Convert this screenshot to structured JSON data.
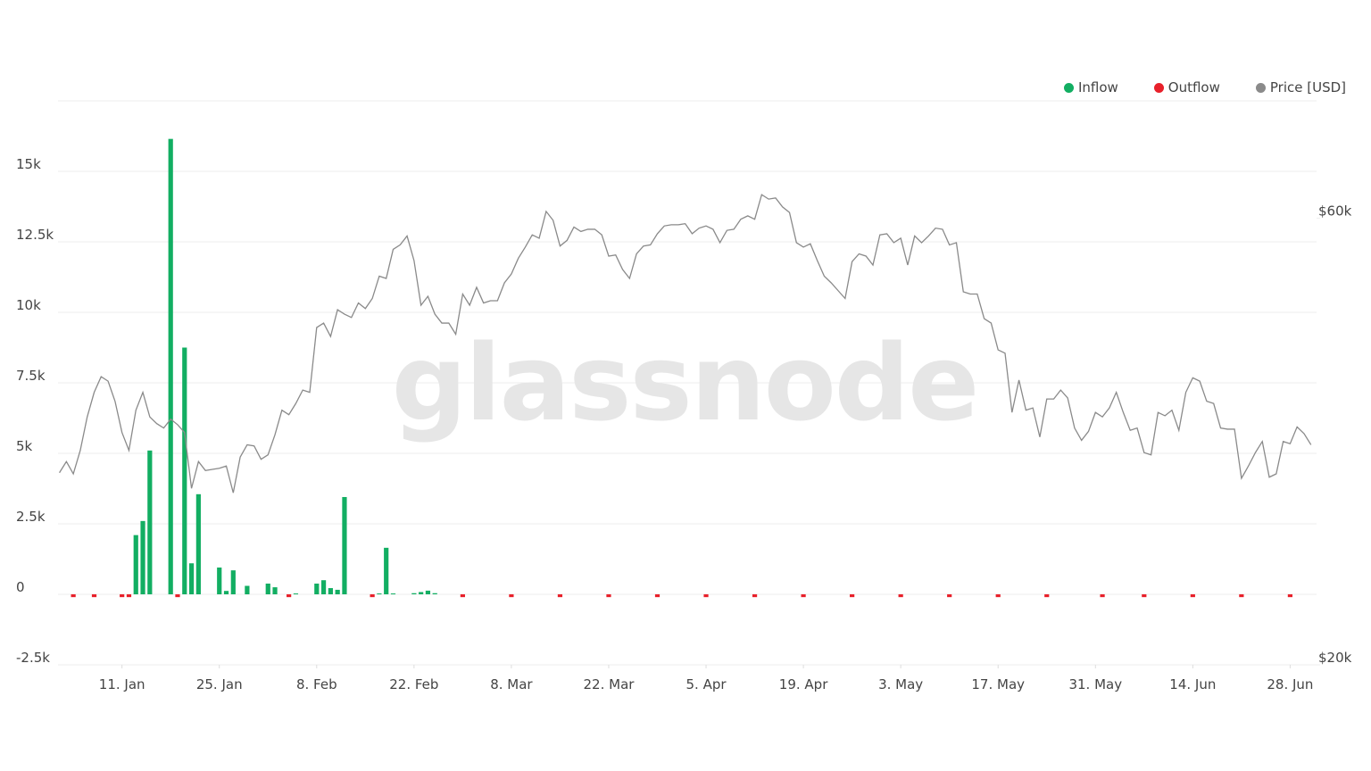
{
  "chart_data": {
    "type": "bar",
    "watermark": "glassnode",
    "xlim": [
      1.8,
      182.8
    ],
    "xticks": [
      {
        "value": 11,
        "label": "11. Jan"
      },
      {
        "value": 25,
        "label": "25. Jan"
      },
      {
        "value": 39,
        "label": "8. Feb"
      },
      {
        "value": 53,
        "label": "22. Feb"
      },
      {
        "value": 67,
        "label": "8. Mar"
      },
      {
        "value": 81,
        "label": "22. Mar"
      },
      {
        "value": 95,
        "label": "5. Apr"
      },
      {
        "value": 109,
        "label": "19. Apr"
      },
      {
        "value": 123,
        "label": "3. May"
      },
      {
        "value": 137,
        "label": "17. May"
      },
      {
        "value": 151,
        "label": "31. May"
      },
      {
        "value": 165,
        "label": "14. Jun"
      },
      {
        "value": 179,
        "label": "28. Jun"
      }
    ],
    "ylim": [
      -2500,
      17500
    ],
    "yticks": [
      {
        "value": -2500,
        "label": "-2.5k"
      },
      0,
      {
        "value": 2500,
        "label": "2.5k"
      },
      {
        "value": 5000,
        "label": "5k"
      },
      {
        "value": 7500,
        "label": "7.5k"
      },
      {
        "value": 10000,
        "label": "10k"
      },
      {
        "value": 12500,
        "label": "12.5k"
      },
      {
        "value": 15000,
        "label": "15k"
      }
    ],
    "y2lim": [
      20000,
      70500
    ],
    "y2ticks": [
      {
        "value": 20000,
        "label": "$20k"
      },
      {
        "value": 60000,
        "label": "$60k"
      }
    ],
    "grid": true,
    "legend": "top-right",
    "series": [
      {
        "name": "Inflow",
        "color": "#12ae62",
        "x": [
          13,
          14,
          15,
          18,
          20,
          21,
          22,
          25,
          26,
          27,
          29,
          32,
          33,
          36,
          39,
          40,
          41,
          42,
          43,
          48,
          49,
          50,
          53,
          54,
          55,
          56
        ],
        "values": [
          2100,
          2600,
          5100,
          16150,
          8750,
          1100,
          3550,
          950,
          120,
          850,
          300,
          380,
          250,
          30,
          380,
          500,
          220,
          160,
          3450,
          30,
          1650,
          30,
          40,
          80,
          130,
          40
        ]
      },
      {
        "name": "Outflow",
        "color": "#e8202a",
        "x": [
          4,
          7,
          11,
          12,
          19,
          35,
          47,
          60,
          67,
          74,
          81,
          88,
          95,
          102,
          109,
          116,
          123,
          130,
          137,
          144,
          152,
          158,
          165,
          172,
          179
        ],
        "values": [
          -100,
          -100,
          -100,
          -100,
          -100,
          -100,
          -100,
          -100,
          -100,
          -100,
          -100,
          -100,
          -100,
          -100,
          -100,
          -100,
          -100,
          -100,
          -100,
          -100,
          -100,
          -100,
          -100,
          -100,
          -100
        ]
      },
      {
        "name": "Price [USD]",
        "color": "#8a8a8a",
        "type": "line",
        "axis": "y2",
        "x": [
          2,
          3,
          4,
          5,
          6,
          7,
          8,
          9,
          10,
          11,
          12,
          13,
          14,
          15,
          16,
          17,
          18,
          19,
          20,
          21,
          22,
          23,
          24,
          25,
          26,
          27,
          28,
          29,
          30,
          31,
          32,
          33,
          34,
          35,
          36,
          37,
          38,
          39,
          40,
          41,
          42,
          43,
          44,
          45,
          46,
          47,
          48,
          49,
          50,
          51,
          52,
          53,
          54,
          55,
          56,
          57,
          58,
          59,
          60,
          61,
          62,
          63,
          64,
          65,
          66,
          67,
          68,
          69,
          70,
          71,
          72,
          73,
          74,
          75,
          76,
          77,
          78,
          79,
          80,
          81,
          82,
          83,
          84,
          85,
          86,
          87,
          88,
          89,
          90,
          91,
          92,
          93,
          94,
          95,
          96,
          97,
          98,
          99,
          100,
          101,
          102,
          103,
          104,
          105,
          106,
          107,
          108,
          109,
          110,
          111,
          112,
          113,
          114,
          115,
          116,
          117,
          118,
          119,
          120,
          121,
          122,
          123,
          124,
          125,
          126,
          127,
          128,
          129,
          130,
          131,
          132,
          133,
          134,
          135,
          136,
          137,
          138,
          139,
          140,
          141,
          142,
          143,
          144,
          145,
          146,
          147,
          148,
          149,
          150,
          151,
          152,
          153,
          154,
          155,
          156,
          157,
          158,
          159,
          160,
          161,
          162,
          163,
          164,
          165,
          166,
          167,
          168,
          169,
          170,
          171,
          172,
          173,
          174,
          175,
          176,
          177,
          178,
          179,
          180,
          181,
          182
        ],
        "values": [
          37200,
          38200,
          37100,
          39200,
          42200,
          44400,
          45800,
          45400,
          43600,
          40800,
          39200,
          42800,
          44400,
          42200,
          41600,
          41200,
          42000,
          41500,
          40800,
          35800,
          38200,
          37400,
          37500,
          37600,
          37800,
          35400,
          38600,
          39700,
          39600,
          38400,
          38800,
          40600,
          42800,
          42400,
          43400,
          44600,
          44400,
          50200,
          50600,
          49400,
          51800,
          51400,
          51100,
          52400,
          51900,
          52800,
          54800,
          54600,
          57200,
          57600,
          58400,
          56200,
          52200,
          53000,
          51400,
          50600,
          50600,
          49600,
          53200,
          52200,
          53800,
          52400,
          52600,
          52600,
          54200,
          55000,
          56400,
          57400,
          58500,
          58200,
          60600,
          59800,
          57500,
          58000,
          59200,
          58800,
          59000,
          59000,
          58500,
          56600,
          56700,
          55400,
          54600,
          56800,
          57500,
          57600,
          58600,
          59300,
          59400,
          59400,
          59500,
          58600,
          59100,
          59300,
          59000,
          57800,
          58900,
          59000,
          59900,
          60200,
          59900,
          62100,
          61700,
          61800,
          61000,
          60500,
          57800,
          57400,
          57700,
          56200,
          54800,
          54200,
          53500,
          52800,
          56100,
          56800,
          56600,
          55800,
          58500,
          58600,
          57800,
          58200,
          55800,
          58400,
          57800,
          58400,
          59100,
          59000,
          57600,
          57800,
          53400,
          53200,
          53200,
          51000,
          50600,
          48200,
          47900,
          42600,
          45500,
          42800,
          43000,
          40400,
          43800,
          43800,
          44600,
          43900,
          41200,
          40100,
          40900,
          42600,
          42200,
          43000,
          44400,
          42600,
          41000,
          41200,
          39000,
          38800,
          42600,
          42300,
          42800,
          41000,
          44400,
          45700,
          45400,
          43600,
          43400,
          41200,
          41100,
          41100,
          36700,
          37800,
          39000,
          40000,
          36800,
          37100,
          40000,
          39800,
          41300,
          40700,
          39700
        ]
      }
    ]
  }
}
